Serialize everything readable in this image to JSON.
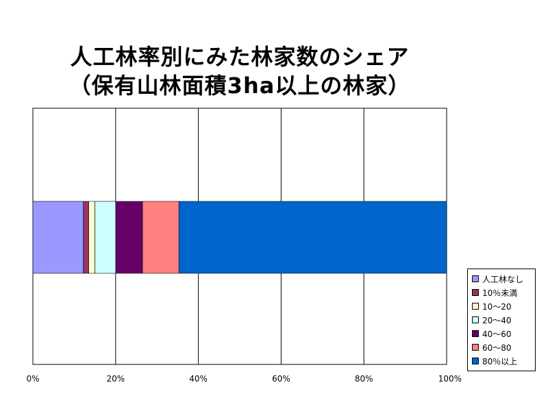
{
  "chart_data": {
    "type": "bar",
    "orientation": "horizontal",
    "stacked": "percent",
    "title_line1": "人工林率別にみた林家数のシェア",
    "title_line2": "（保有山林面積3ha以上の林家）",
    "xlim": [
      0,
      100
    ],
    "x_ticks": [
      "0%",
      "20%",
      "40%",
      "60%",
      "80%",
      "100%"
    ],
    "grid": true,
    "legend_position": "right",
    "series": [
      {
        "name": "人工林なし",
        "value": 12.2,
        "color": "#9999ff"
      },
      {
        "name": "10％未満",
        "value": 1.3,
        "color": "#993366"
      },
      {
        "name": "10～20",
        "value": 1.5,
        "color": "#ffffcc"
      },
      {
        "name": "20～40",
        "value": 5.0,
        "color": "#ccffff"
      },
      {
        "name": "40～60",
        "value": 6.5,
        "color": "#660066"
      },
      {
        "name": "60～80",
        "value": 8.8,
        "color": "#ff8080"
      },
      {
        "name": "80％以上",
        "value": 64.7,
        "color": "#0066cc"
      }
    ]
  }
}
